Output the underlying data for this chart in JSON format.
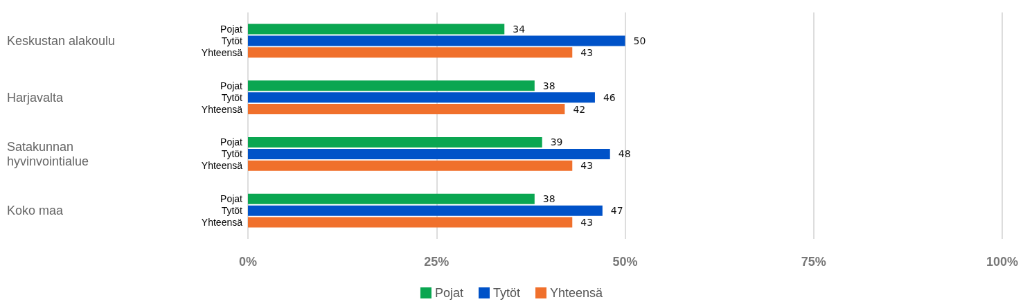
{
  "chart_data": {
    "type": "bar",
    "orientation": "horizontal",
    "categories": [
      "Keskustan alakoulu",
      "Harjavalta",
      "Satakunnan hyvinvointialue",
      "Koko maa"
    ],
    "series": [
      {
        "name": "Pojat",
        "color": "#0aa651",
        "values": [
          34,
          38,
          39,
          38
        ]
      },
      {
        "name": "Tytöt",
        "color": "#0052c8",
        "values": [
          50,
          46,
          48,
          47
        ]
      },
      {
        "name": "Yhteensä",
        "color": "#f0702c",
        "values": [
          43,
          42,
          43,
          43
        ]
      }
    ],
    "xlim": [
      0,
      100
    ],
    "xticks": [
      {
        "value": 0,
        "label": "0%"
      },
      {
        "value": 25,
        "label": "25%"
      },
      {
        "value": 50,
        "label": "50%"
      },
      {
        "value": 75,
        "label": "75%"
      },
      {
        "value": 100,
        "label": "100%"
      }
    ],
    "grid": "x",
    "legend": "bottom",
    "data_labels": true
  }
}
